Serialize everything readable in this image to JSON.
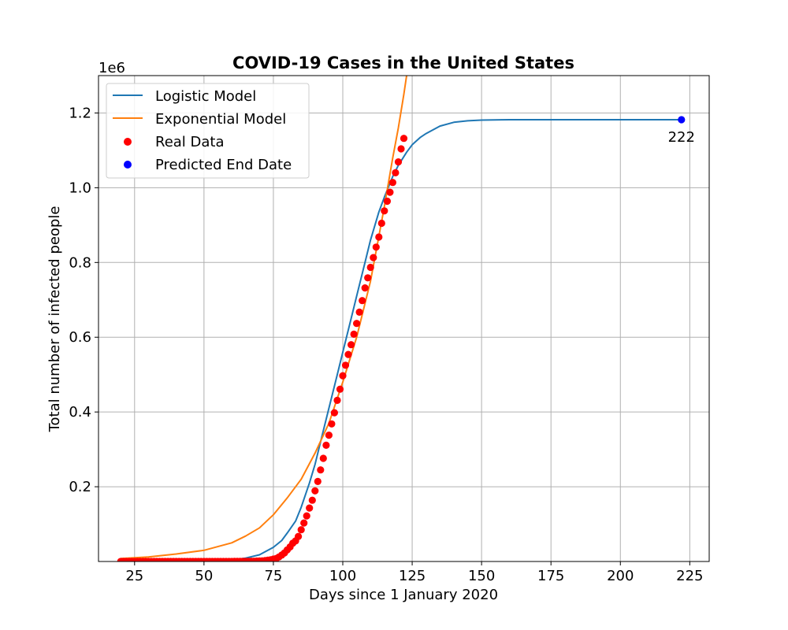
{
  "chart_data": {
    "type": "line",
    "title": "COVID-19 Cases in the United States",
    "xlabel": "Days since 1 January 2020",
    "ylabel": "Total number of infected people",
    "y_offset_text": "1e6",
    "xlim": [
      12,
      232
    ],
    "ylim": [
      0,
      1300000
    ],
    "x_ticks": [
      25,
      50,
      75,
      100,
      125,
      150,
      175,
      200,
      225
    ],
    "y_ticks": [
      200000,
      400000,
      600000,
      800000,
      1000000,
      1200000
    ],
    "y_tick_labels": [
      "0.2",
      "0.4",
      "0.6",
      "0.8",
      "1.0",
      "1.2"
    ],
    "grid": true,
    "legend_position": "top-left",
    "series": [
      {
        "name": "Logistic Model",
        "kind": "line",
        "color": "#1f77b4",
        "x": [
          20,
          40,
          55,
          60,
          65,
          70,
          75,
          78,
          80,
          83,
          85,
          88,
          90,
          93,
          95,
          98,
          100,
          103,
          105,
          108,
          110,
          113,
          115,
          118,
          120,
          123,
          125,
          128,
          130,
          135,
          140,
          145,
          150,
          160,
          175,
          200,
          222
        ],
        "y": [
          0,
          300,
          2000,
          4000,
          9000,
          18000,
          38000,
          56000,
          76000,
          108000,
          145000,
          210000,
          260000,
          350000,
          410000,
          500000,
          560000,
          650000,
          710000,
          800000,
          860000,
          935000,
          975000,
          1030000,
          1060000,
          1095000,
          1115000,
          1135000,
          1145000,
          1165000,
          1175000,
          1179000,
          1181000,
          1182000,
          1182000,
          1182000,
          1182000
        ]
      },
      {
        "name": "Exponential Model",
        "kind": "line",
        "color": "#ff7f0e",
        "x": [
          20,
          30,
          40,
          50,
          60,
          65,
          70,
          75,
          80,
          85,
          90,
          95,
          100,
          105,
          110,
          113,
          115,
          118,
          120,
          122,
          123
        ],
        "y": [
          8000,
          12000,
          20000,
          30000,
          50000,
          68000,
          90000,
          125000,
          170000,
          220000,
          290000,
          370000,
          480000,
          600000,
          750000,
          870000,
          950000,
          1080000,
          1160000,
          1250000,
          1300000
        ]
      },
      {
        "name": "Real Data",
        "kind": "scatter",
        "color": "#ff0000",
        "x": [
          20,
          21,
          22,
          23,
          24,
          25,
          26,
          27,
          28,
          29,
          30,
          31,
          32,
          33,
          34,
          35,
          36,
          37,
          38,
          39,
          40,
          41,
          42,
          43,
          44,
          45,
          46,
          47,
          48,
          49,
          50,
          51,
          52,
          53,
          54,
          55,
          56,
          57,
          58,
          59,
          60,
          61,
          62,
          63,
          64,
          65,
          66,
          67,
          68,
          69,
          70,
          71,
          72,
          73,
          74,
          75,
          76,
          77,
          78,
          79,
          80,
          81,
          82,
          83,
          84,
          85,
          86,
          87,
          88,
          89,
          90,
          91,
          92,
          93,
          94,
          95,
          96,
          97,
          98,
          99,
          100,
          101,
          102,
          103,
          104,
          105,
          106,
          107,
          108,
          109,
          110,
          111,
          112,
          113,
          114,
          115,
          116,
          117,
          118,
          119,
          120,
          121,
          122
        ],
        "y": [
          1,
          1,
          1,
          1,
          2,
          2,
          5,
          5,
          5,
          5,
          6,
          7,
          8,
          11,
          11,
          11,
          12,
          12,
          12,
          12,
          12,
          13,
          13,
          14,
          14,
          15,
          15,
          15,
          15,
          15,
          15,
          35,
          35,
          35,
          53,
          57,
          60,
          60,
          64,
          69,
          89,
          106,
          125,
          161,
          233,
          338,
          445,
          572,
          717,
          1010,
          1260,
          1700,
          2270,
          3500,
          4600,
          6400,
          8000,
          12000,
          17000,
          23000,
          31000,
          39000,
          49000,
          55000,
          67000,
          85000,
          103000,
          122000,
          143000,
          164000,
          189000,
          214000,
          245000,
          276000,
          311000,
          338000,
          368000,
          398000,
          431000,
          461000,
          497000,
          525000,
          554000,
          580000,
          608000,
          637000,
          667000,
          698000,
          732000,
          759000,
          787000,
          813000,
          841000,
          868000,
          905000,
          938000,
          964000,
          988000,
          1014000,
          1040000,
          1069000,
          1104000,
          1132000
        ]
      },
      {
        "name": "Predicted End Date",
        "kind": "scatter",
        "color": "#0000ff",
        "x": [
          222
        ],
        "y": [
          1182000
        ]
      }
    ],
    "annotations": [
      {
        "text": "222",
        "x": 222,
        "y": 1182000
      }
    ]
  }
}
